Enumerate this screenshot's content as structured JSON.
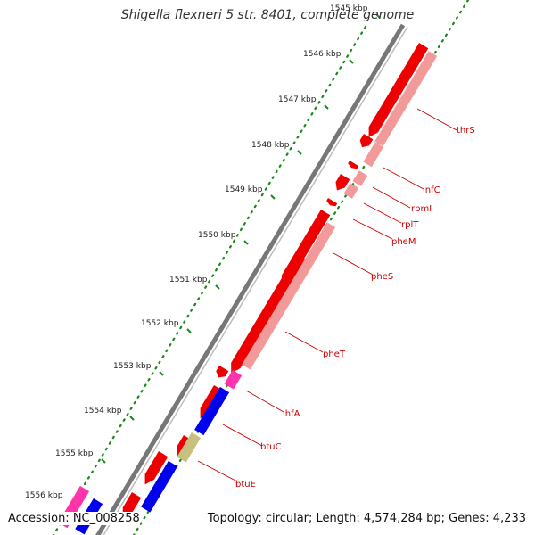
{
  "title": "Shigella flexneri 5 str. 8401, complete genome",
  "footer": {
    "accession": "Accession: NC_008258",
    "topology": "Topology: circular; Length: 4,574,284 bp; Genes: 4,233"
  },
  "ticks": [
    "1545 kbp",
    "1546 kbp",
    "1547 kbp",
    "1548 kbp",
    "1549 kbp",
    "1550 kbp",
    "1551 kbp",
    "1552 kbp",
    "1553 kbp",
    "1554 kbp",
    "1555 kbp",
    "1556 kbp"
  ],
  "colors": {
    "cds_forward": "#ee0000",
    "cds_reverse": "#0000ee",
    "gene": "#f29a9a",
    "misc": "#ff33aa",
    "trna": "#c8c080",
    "backbone": "#777777",
    "tick_dots": "#1a8a1a",
    "label": "#cc0000"
  },
  "genes": [
    {
      "name": "thrS"
    },
    {
      "name": "infC"
    },
    {
      "name": "rpmI"
    },
    {
      "name": "rplT"
    },
    {
      "name": "pheM"
    },
    {
      "name": "pheS"
    },
    {
      "name": "pheT"
    },
    {
      "name": "ihfA"
    },
    {
      "name": "btuC"
    },
    {
      "name": "btuE"
    }
  ]
}
